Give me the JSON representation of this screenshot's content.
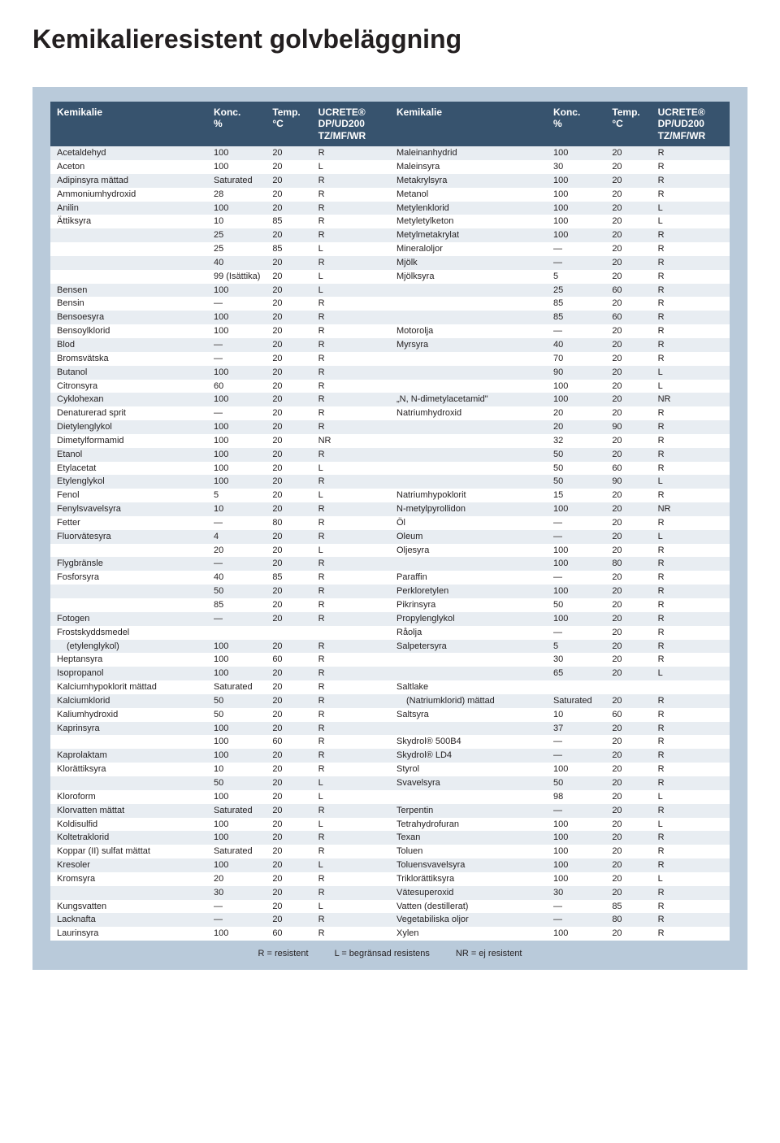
{
  "title": "Kemikalieresistent golvbeläggning",
  "headers": {
    "kemikalie": "Kemikalie",
    "konc": "Konc.",
    "konc_unit": "%",
    "temp": "Temp.",
    "temp_unit": "°C",
    "ucrete": "UCRETE®",
    "ucrete_sub1": "DP/UD200",
    "ucrete_sub2": "TZ/MF/WR"
  },
  "legend": {
    "r": "R = resistent",
    "l": "L = begränsad resistens",
    "nr": "NR = ej resistent"
  },
  "left": [
    {
      "n": "Acetaldehyd",
      "k": "100",
      "t": "20",
      "r": "R"
    },
    {
      "n": "Aceton",
      "k": "100",
      "t": "20",
      "r": "L"
    },
    {
      "n": "Adipinsyra mättad",
      "k": "Saturated",
      "t": "20",
      "r": "R"
    },
    {
      "n": "Ammoniumhydroxid",
      "k": "28",
      "t": "20",
      "r": "R"
    },
    {
      "n": "Anilin",
      "k": "100",
      "t": "20",
      "r": "R"
    },
    {
      "n": "Ättiksyra",
      "k": "10",
      "t": "85",
      "r": "R"
    },
    {
      "n": "",
      "k": "25",
      "t": "20",
      "r": "R"
    },
    {
      "n": "",
      "k": "25",
      "t": "85",
      "r": "L"
    },
    {
      "n": "",
      "k": "40",
      "t": "20",
      "r": "R"
    },
    {
      "n": "",
      "k": "99 (Isättika)",
      "t": "20",
      "r": "L"
    },
    {
      "n": "Bensen",
      "k": "100",
      "t": "20",
      "r": "L"
    },
    {
      "n": "Bensin",
      "k": "—",
      "t": "20",
      "r": "R"
    },
    {
      "n": "Bensoesyra",
      "k": "100",
      "t": "20",
      "r": "R"
    },
    {
      "n": "Bensoylklorid",
      "k": "100",
      "t": "20",
      "r": "R"
    },
    {
      "n": "Blod",
      "k": "—",
      "t": "20",
      "r": "R"
    },
    {
      "n": "Bromsvätska",
      "k": "—",
      "t": "20",
      "r": "R"
    },
    {
      "n": "Butanol",
      "k": "100",
      "t": "20",
      "r": "R"
    },
    {
      "n": "Citronsyra",
      "k": "60",
      "t": "20",
      "r": "R"
    },
    {
      "n": "Cyklohexan",
      "k": "100",
      "t": "20",
      "r": "R"
    },
    {
      "n": "Denaturerad sprit",
      "k": "—",
      "t": "20",
      "r": "R"
    },
    {
      "n": "Dietylenglykol",
      "k": "100",
      "t": "20",
      "r": "R"
    },
    {
      "n": "Dimetylformamid",
      "k": "100",
      "t": "20",
      "r": "NR"
    },
    {
      "n": "Etanol",
      "k": "100",
      "t": "20",
      "r": "R"
    },
    {
      "n": "Etylacetat",
      "k": "100",
      "t": "20",
      "r": "L"
    },
    {
      "n": "Etylenglykol",
      "k": "100",
      "t": "20",
      "r": "R"
    },
    {
      "n": "Fenol",
      "k": "5",
      "t": "20",
      "r": "L"
    },
    {
      "n": "Fenylsvavelsyra",
      "k": "10",
      "t": "20",
      "r": "R"
    },
    {
      "n": "Fetter",
      "k": "—",
      "t": "80",
      "r": "R"
    },
    {
      "n": "Fluorvätesyra",
      "k": "4",
      "t": "20",
      "r": "R"
    },
    {
      "n": "",
      "k": "20",
      "t": "20",
      "r": "L"
    },
    {
      "n": "Flygbränsle",
      "k": "—",
      "t": "20",
      "r": "R"
    },
    {
      "n": "Fosforsyra",
      "k": "40",
      "t": "85",
      "r": "R"
    },
    {
      "n": "",
      "k": "50",
      "t": "20",
      "r": "R"
    },
    {
      "n": "",
      "k": "85",
      "t": "20",
      "r": "R"
    },
    {
      "n": "Fotogen",
      "k": "—",
      "t": "20",
      "r": "R"
    },
    {
      "n": "Frostskyddsmedel",
      "k": "",
      "t": "",
      "r": ""
    },
    {
      "n": "  (etylenglykol)",
      "k": "100",
      "t": "20",
      "r": "R",
      "indent": true
    },
    {
      "n": "Heptansyra",
      "k": "100",
      "t": "60",
      "r": "R"
    },
    {
      "n": "Isopropanol",
      "k": "100",
      "t": "20",
      "r": "R"
    },
    {
      "n": "Kalciumhypoklorit mättad",
      "k": "Saturated",
      "t": "20",
      "r": "R"
    },
    {
      "n": "Kalciumklorid",
      "k": "50",
      "t": "20",
      "r": "R"
    },
    {
      "n": "Kaliumhydroxid",
      "k": "50",
      "t": "20",
      "r": "R"
    },
    {
      "n": "Kaprinsyra",
      "k": "100",
      "t": "20",
      "r": "R"
    },
    {
      "n": "",
      "k": "100",
      "t": "60",
      "r": "R"
    },
    {
      "n": "Kaprolaktam",
      "k": "100",
      "t": "20",
      "r": "R"
    },
    {
      "n": "Klorättiksyra",
      "k": "10",
      "t": "20",
      "r": "R"
    },
    {
      "n": "",
      "k": "50",
      "t": "20",
      "r": "L"
    },
    {
      "n": "Kloroform",
      "k": "100",
      "t": "20",
      "r": "L"
    },
    {
      "n": "Klorvatten mättat",
      "k": "Saturated",
      "t": "20",
      "r": "R"
    },
    {
      "n": "Koldisulfid",
      "k": "100",
      "t": "20",
      "r": "L"
    },
    {
      "n": "Koltetraklorid",
      "k": "100",
      "t": "20",
      "r": "R"
    },
    {
      "n": "Koppar (II) sulfat mättat",
      "k": "Saturated",
      "t": "20",
      "r": "R"
    },
    {
      "n": "Kresoler",
      "k": "100",
      "t": "20",
      "r": "L"
    },
    {
      "n": "Kromsyra",
      "k": "20",
      "t": "20",
      "r": "R"
    },
    {
      "n": "",
      "k": "30",
      "t": "20",
      "r": "R"
    },
    {
      "n": "Kungsvatten",
      "k": "—",
      "t": "20",
      "r": "L"
    },
    {
      "n": "Lacknafta",
      "k": "—",
      "t": "20",
      "r": "R"
    },
    {
      "n": "Laurinsyra",
      "k": "100",
      "t": "60",
      "r": "R"
    }
  ],
  "right": [
    {
      "n": "Maleinanhydrid",
      "k": "100",
      "t": "20",
      "r": "R"
    },
    {
      "n": "Maleinsyra",
      "k": "30",
      "t": "20",
      "r": "R"
    },
    {
      "n": "Metakrylsyra",
      "k": "100",
      "t": "20",
      "r": "R"
    },
    {
      "n": "Metanol",
      "k": "100",
      "t": "20",
      "r": "R"
    },
    {
      "n": "Metylenklorid",
      "k": "100",
      "t": "20",
      "r": "L"
    },
    {
      "n": "Metyletylketon",
      "k": "100",
      "t": "20",
      "r": "L"
    },
    {
      "n": "Metylmetakrylat",
      "k": "100",
      "t": "20",
      "r": "R"
    },
    {
      "n": "Mineraloljor",
      "k": "—",
      "t": "20",
      "r": "R"
    },
    {
      "n": "Mjölk",
      "k": "—",
      "t": "20",
      "r": "R"
    },
    {
      "n": "Mjölksyra",
      "k": "5",
      "t": "20",
      "r": "R"
    },
    {
      "n": "",
      "k": "25",
      "t": "60",
      "r": "R"
    },
    {
      "n": "",
      "k": "85",
      "t": "20",
      "r": "R"
    },
    {
      "n": "",
      "k": "85",
      "t": "60",
      "r": "R"
    },
    {
      "n": "Motorolja",
      "k": "—",
      "t": "20",
      "r": "R"
    },
    {
      "n": "Myrsyra",
      "k": "40",
      "t": "20",
      "r": "R"
    },
    {
      "n": "",
      "k": "70",
      "t": "20",
      "r": "R"
    },
    {
      "n": "",
      "k": "90",
      "t": "20",
      "r": "L"
    },
    {
      "n": "",
      "k": "100",
      "t": "20",
      "r": "L"
    },
    {
      "n": "„N, N-dimetylacetamid\"",
      "k": "100",
      "t": "20",
      "r": "NR"
    },
    {
      "n": "Natriumhydroxid",
      "k": "20",
      "t": "20",
      "r": "R"
    },
    {
      "n": "",
      "k": "20",
      "t": "90",
      "r": "R"
    },
    {
      "n": "",
      "k": "32",
      "t": "20",
      "r": "R"
    },
    {
      "n": "",
      "k": "50",
      "t": "20",
      "r": "R"
    },
    {
      "n": "",
      "k": "50",
      "t": "60",
      "r": "R"
    },
    {
      "n": "",
      "k": "50",
      "t": "90",
      "r": "L"
    },
    {
      "n": "Natriumhypoklorit",
      "k": "15",
      "t": "20",
      "r": "R"
    },
    {
      "n": "N-metylpyrollidon",
      "k": "100",
      "t": "20",
      "r": "NR"
    },
    {
      "n": "Öl",
      "k": "—",
      "t": "20",
      "r": "R"
    },
    {
      "n": "Oleum",
      "k": "—",
      "t": "20",
      "r": "L"
    },
    {
      "n": "Oljesyra",
      "k": "100",
      "t": "20",
      "r": "R"
    },
    {
      "n": "",
      "k": "100",
      "t": "80",
      "r": "R"
    },
    {
      "n": "Paraffin",
      "k": "—",
      "t": "20",
      "r": "R"
    },
    {
      "n": "Perkloretylen",
      "k": "100",
      "t": "20",
      "r": "R"
    },
    {
      "n": "Pikrinsyra",
      "k": "50",
      "t": "20",
      "r": "R"
    },
    {
      "n": "Propylenglykol",
      "k": "100",
      "t": "20",
      "r": "R"
    },
    {
      "n": "Råolja",
      "k": "—",
      "t": "20",
      "r": "R"
    },
    {
      "n": "Salpetersyra",
      "k": "5",
      "t": "20",
      "r": "R"
    },
    {
      "n": "",
      "k": "30",
      "t": "20",
      "r": "R"
    },
    {
      "n": "",
      "k": "65",
      "t": "20",
      "r": "L"
    },
    {
      "n": "Saltlake",
      "k": "",
      "t": "",
      "r": ""
    },
    {
      "n": "  (Natriumklorid) mättad",
      "k": "Saturated",
      "t": "20",
      "r": "R",
      "indent": true
    },
    {
      "n": "Saltsyra",
      "k": "10",
      "t": "60",
      "r": "R"
    },
    {
      "n": "",
      "k": "37",
      "t": "20",
      "r": "R"
    },
    {
      "n": "Skydrol® 500B4",
      "k": "—",
      "t": "20",
      "r": "R"
    },
    {
      "n": "Skydrol® LD4",
      "k": "—",
      "t": "20",
      "r": "R"
    },
    {
      "n": "Styrol",
      "k": "100",
      "t": "20",
      "r": "R"
    },
    {
      "n": "Svavelsyra",
      "k": "50",
      "t": "20",
      "r": "R"
    },
    {
      "n": "",
      "k": "98",
      "t": "20",
      "r": "L"
    },
    {
      "n": "Terpentin",
      "k": "—",
      "t": "20",
      "r": "R"
    },
    {
      "n": "Tetrahydrofuran",
      "k": "100",
      "t": "20",
      "r": "L"
    },
    {
      "n": "Texan",
      "k": "100",
      "t": "20",
      "r": "R"
    },
    {
      "n": "Toluen",
      "k": "100",
      "t": "20",
      "r": "R"
    },
    {
      "n": "Toluensvavelsyra",
      "k": "100",
      "t": "20",
      "r": "R"
    },
    {
      "n": "Triklorättiksyra",
      "k": "100",
      "t": "20",
      "r": "L"
    },
    {
      "n": "Vätesuperoxid",
      "k": "30",
      "t": "20",
      "r": "R"
    },
    {
      "n": "Vatten (destillerat)",
      "k": "—",
      "t": "85",
      "r": "R"
    },
    {
      "n": "Vegetabiliska oljor",
      "k": "—",
      "t": "80",
      "r": "R"
    },
    {
      "n": "Xylen",
      "k": "100",
      "t": "20",
      "r": "R"
    }
  ],
  "colors": {
    "page_bg": "#ffffff",
    "wrap_bg": "#b9cada",
    "header_bg": "#37536e",
    "header_text": "#ffffff",
    "row_alt0": "#e8edf2",
    "row_alt1": "#ffffff",
    "text": "#231f20"
  }
}
